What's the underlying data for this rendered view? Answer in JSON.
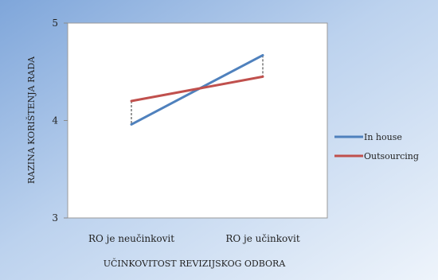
{
  "chart_data": {
    "type": "line",
    "title": "",
    "xlabel": "UČINKOVITOST REVIZIJSKOG ODBORA",
    "ylabel": "RAZINA KORIŠTENJA RADA",
    "categories": [
      "RO je neučinkovit",
      "RO je učinkovit"
    ],
    "ylim": [
      3,
      5
    ],
    "yticks": [
      "3",
      "4",
      "5"
    ],
    "grid": false,
    "legend_position": "right",
    "series": [
      {
        "name": "In house",
        "values": [
          3.96,
          4.67
        ],
        "color": "#4F81BD"
      },
      {
        "name": "Outsourcing",
        "values": [
          4.2,
          4.45
        ],
        "color": "#C0504D"
      }
    ],
    "difference_markers": "dashed vertical lines between series at each category",
    "background_color": "#C6D9F1",
    "plot_area_color": "#FFFFFF"
  }
}
